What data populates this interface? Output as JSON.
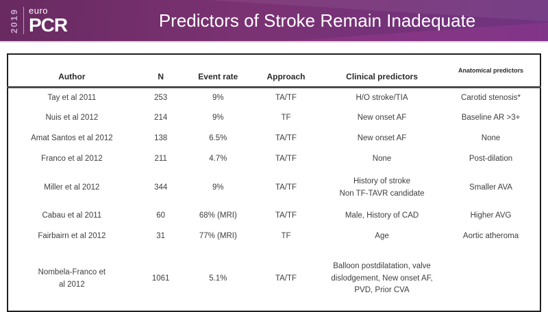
{
  "header": {
    "logo": {
      "year": "2019",
      "brand_top": "euro",
      "brand_main": "PCR"
    },
    "title": "Predictors of Stroke Remain Inadequate"
  },
  "table": {
    "columns": [
      "Author",
      "N",
      "Event rate",
      "Approach",
      "Clinical predictors",
      "Anatomical predictors"
    ],
    "rows": [
      {
        "author": "Tay et al 2011",
        "n": "253",
        "event_rate": "9%",
        "approach": "TA/TF",
        "clinical": "H/O stroke/TIA",
        "anatomical": "Carotid stenosis*"
      },
      {
        "author": "Nuis et al 2012",
        "n": "214",
        "event_rate": "9%",
        "approach": "TF",
        "clinical": "New onset AF",
        "anatomical": "Baseline AR >3+"
      },
      {
        "author": "Amat Santos et al 2012",
        "n": "138",
        "event_rate": "6.5%",
        "approach": "TA/TF",
        "clinical": "New onset AF",
        "anatomical": "None"
      },
      {
        "author": "Franco et al 2012",
        "n": "211",
        "event_rate": "4.7%",
        "approach": "TA/TF",
        "clinical": "None",
        "anatomical": "Post-dilation"
      },
      {
        "author": "Miller et al 2012",
        "n": "344",
        "event_rate": "9%",
        "approach": "TA/TF",
        "clinical": "History of stroke\nNon TF-TAVR candidate",
        "anatomical": "Smaller AVA"
      },
      {
        "author": "Cabau et al 2011",
        "n": "60",
        "event_rate": "68% (MRI)",
        "approach": "TA/TF",
        "clinical": "Male, History of CAD",
        "anatomical": "Higher AVG"
      },
      {
        "author": "Fairbairn et al 2012",
        "n": "31",
        "event_rate": "77% (MRI)",
        "approach": "TF",
        "clinical": "Age",
        "anatomical": "Aortic atheroma"
      },
      {
        "author": "Nombela-Franco et\nal 2012",
        "n": "1061",
        "event_rate": "5.1%",
        "approach": "TA/TF",
        "clinical": "Balloon postdilatation, valve\ndislodgement, New onset AF,\nPVD, Prior CVA",
        "anatomical": ""
      }
    ]
  },
  "colors": {
    "header_gradient_left": "#682a60",
    "header_gradient_mid": "#7b3273",
    "header_gradient_right": "#6f3380",
    "header_facet_magenta": "#8b3d8f",
    "header_underline": "#d8d0dc",
    "title_text": "#ffffff",
    "logo_year_text": "#c9a6d2",
    "table_border": "#1f1f1f",
    "table_header_rule": "#4a4a4a",
    "table_text": "#3d3d3d"
  }
}
